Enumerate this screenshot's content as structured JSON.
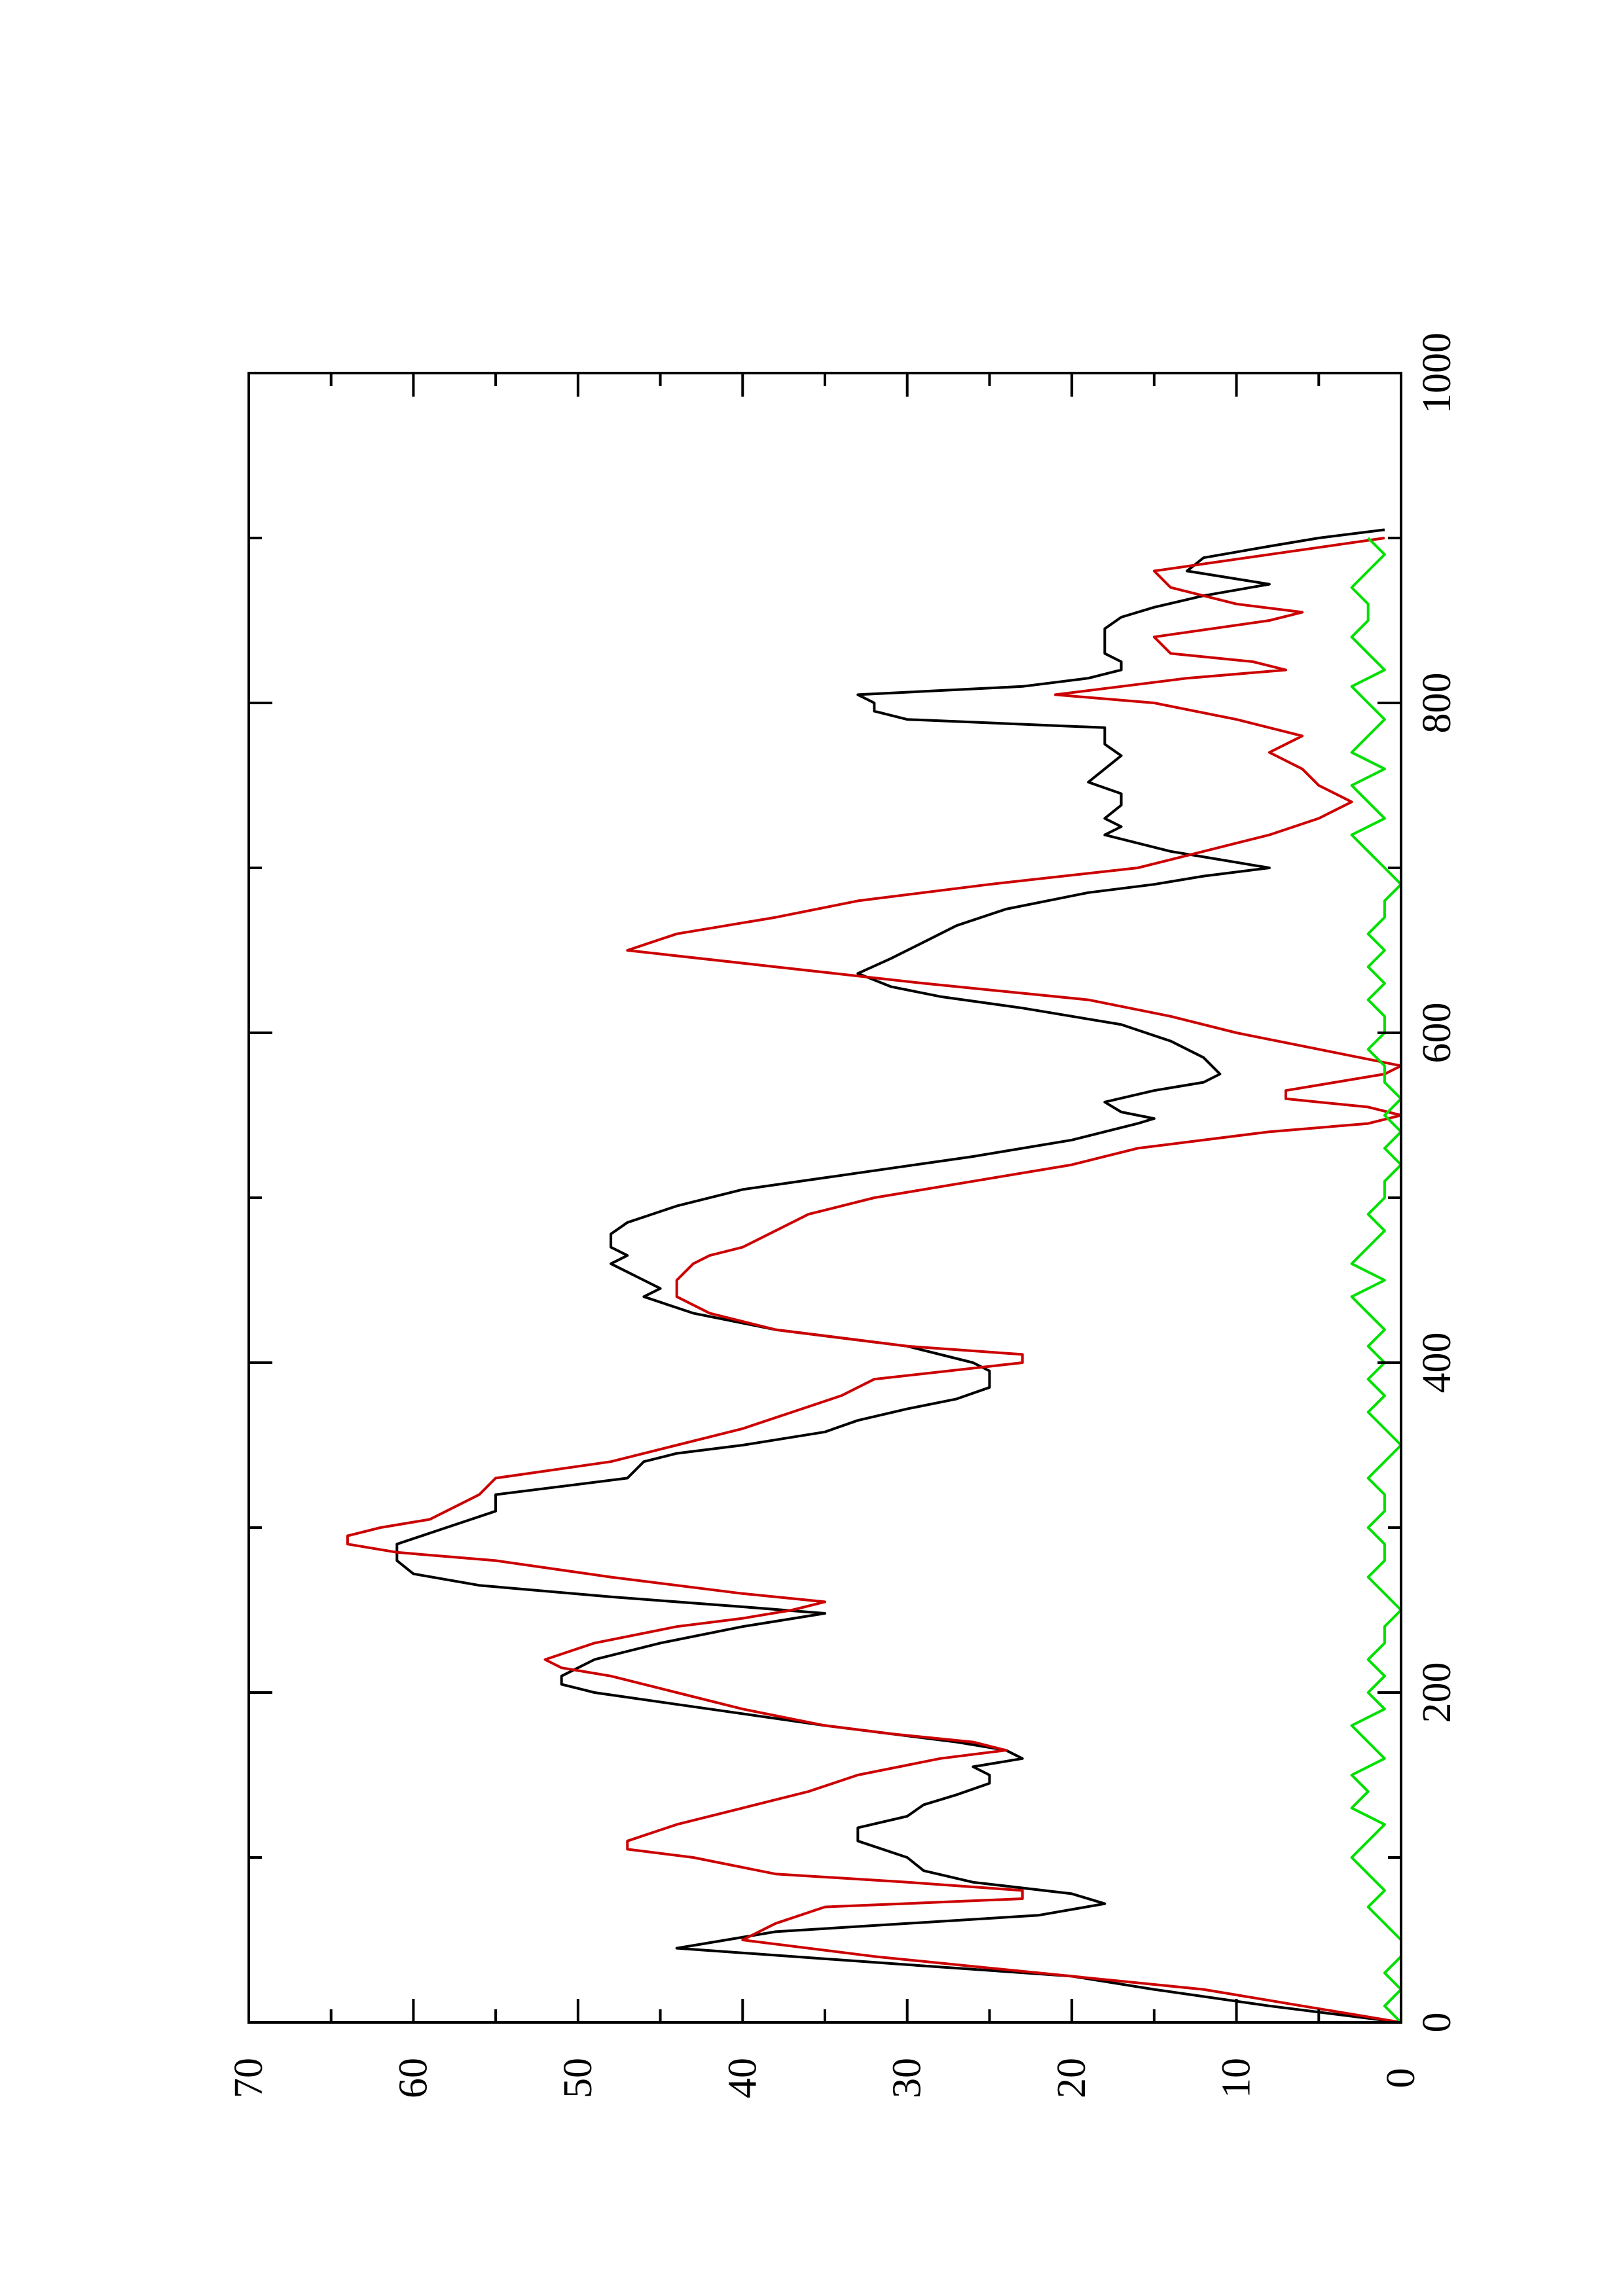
{
  "chart_data": {
    "type": "line",
    "orientation": "rotated-90-ccw",
    "title": "",
    "xlabel": "",
    "ylabel": "",
    "xlim": [
      0,
      1000
    ],
    "ylim": [
      0,
      70
    ],
    "x_ticks": [
      0,
      200,
      400,
      600,
      800,
      1000
    ],
    "x_tick_labels": [
      "0",
      "200",
      "400",
      "600",
      "800",
      "1000"
    ],
    "y_ticks": [
      0,
      10,
      20,
      30,
      40,
      50,
      60,
      70
    ],
    "y_tick_labels": [
      "0",
      "10",
      "20",
      "30",
      "40",
      "50",
      "60",
      "70"
    ],
    "grid": false,
    "legend": "none",
    "series": [
      {
        "color": "#000000",
        "x": [
          0,
          10,
          20,
          28,
          35,
          45,
          55,
          65,
          72,
          78,
          85,
          92,
          100,
          110,
          118,
          125,
          132,
          138,
          145,
          150,
          155,
          160,
          165,
          170,
          180,
          190,
          200,
          205,
          210,
          215,
          220,
          230,
          240,
          248,
          252,
          258,
          265,
          272,
          280,
          285,
          290,
          300,
          310,
          320,
          330,
          340,
          345,
          350,
          358,
          365,
          372,
          378,
          385,
          390,
          395,
          400,
          410,
          420,
          430,
          440,
          445,
          450,
          455,
          460,
          465,
          470,
          478,
          485,
          495,
          505,
          515,
          525,
          535,
          545,
          548,
          552,
          558,
          565,
          570,
          575,
          585,
          595,
          605,
          615,
          622,
          628,
          636,
          645,
          655,
          665,
          675,
          685,
          690,
          695,
          700,
          705,
          710,
          715,
          720,
          725,
          730,
          738,
          745,
          752,
          760,
          768,
          775,
          780,
          785,
          790,
          795,
          800,
          805,
          810,
          815,
          820,
          825,
          830,
          838,
          845,
          852,
          858,
          865,
          872,
          880,
          888,
          895,
          900,
          905
        ],
        "y": [
          0,
          8,
          15,
          20,
          30,
          44,
          38,
          22,
          18,
          20,
          26,
          29,
          30,
          33,
          33,
          30,
          29,
          27,
          25,
          25,
          26,
          23,
          24,
          27,
          35,
          42,
          49,
          51,
          51,
          50,
          49,
          45,
          40,
          35,
          40,
          48,
          56,
          60,
          61,
          61,
          61,
          58,
          55,
          55,
          47,
          46,
          44,
          40,
          35,
          33,
          30,
          27,
          25,
          25,
          25,
          26,
          30,
          38,
          43,
          46,
          45,
          46,
          47,
          48,
          47,
          48,
          48,
          47,
          44,
          40,
          33,
          26,
          20,
          16,
          15,
          17,
          18,
          15,
          12,
          11,
          12,
          14,
          17,
          23,
          28,
          31,
          33,
          31,
          29,
          27,
          24,
          19,
          15,
          12,
          8,
          11,
          14,
          16,
          18,
          17,
          18,
          17,
          17,
          19,
          18,
          17,
          18,
          18,
          18,
          30,
          32,
          32,
          33,
          23,
          19,
          17,
          17,
          18,
          18,
          18,
          17,
          15,
          12,
          8,
          13,
          12,
          8,
          5,
          1
        ]
      },
      {
        "color": "#cc0000",
        "x": [
          0,
          10,
          20,
          30,
          40,
          50,
          60,
          70,
          75,
          80,
          85,
          90,
          100,
          105,
          110,
          120,
          130,
          140,
          150,
          160,
          165,
          170,
          175,
          180,
          190,
          200,
          210,
          215,
          220,
          230,
          240,
          245,
          250,
          255,
          260,
          270,
          280,
          285,
          290,
          295,
          300,
          305,
          310,
          320,
          330,
          340,
          350,
          360,
          370,
          380,
          390,
          400,
          405,
          410,
          420,
          430,
          440,
          445,
          450,
          460,
          465,
          470,
          480,
          490,
          500,
          510,
          520,
          530,
          540,
          545,
          550,
          555,
          560,
          565,
          570,
          575,
          580,
          590,
          600,
          610,
          620,
          630,
          640,
          650,
          660,
          670,
          680,
          690,
          700,
          710,
          720,
          730,
          740,
          750,
          760,
          770,
          780,
          790,
          800,
          805,
          810,
          815,
          820,
          825,
          830,
          840,
          850,
          855,
          860,
          870,
          880,
          890,
          900
        ],
        "y": [
          0,
          6,
          12,
          22,
          32,
          40,
          38,
          35,
          23,
          23,
          30,
          38,
          43,
          47,
          47,
          44,
          40,
          36,
          33,
          28,
          24,
          26,
          31,
          35,
          40,
          44,
          48,
          51,
          52,
          49,
          44,
          40,
          37,
          35,
          40,
          48,
          55,
          61,
          64,
          64,
          62,
          59,
          58,
          56,
          55,
          48,
          44,
          40,
          37,
          34,
          32,
          23,
          23,
          30,
          38,
          42,
          44,
          44,
          44,
          43,
          42,
          40,
          38,
          36,
          32,
          26,
          20,
          16,
          8,
          2,
          0,
          2,
          7,
          7,
          4,
          1,
          0,
          5,
          10,
          14,
          19,
          29,
          38,
          47,
          44,
          38,
          33,
          25,
          16,
          12,
          8,
          5,
          3,
          5,
          6,
          8,
          6,
          10,
          15,
          21,
          17,
          13,
          7,
          9,
          14,
          15,
          8,
          6,
          10,
          14,
          15,
          8,
          1
        ]
      },
      {
        "color": "#00e000",
        "x": [
          0,
          10,
          20,
          30,
          40,
          50,
          60,
          70,
          80,
          90,
          100,
          110,
          120,
          130,
          140,
          150,
          160,
          170,
          180,
          190,
          200,
          210,
          220,
          230,
          240,
          250,
          260,
          270,
          280,
          290,
          300,
          310,
          320,
          330,
          340,
          350,
          360,
          370,
          380,
          390,
          400,
          410,
          420,
          430,
          440,
          450,
          460,
          470,
          480,
          490,
          500,
          510,
          520,
          530,
          540,
          550,
          560,
          570,
          580,
          590,
          600,
          610,
          620,
          630,
          640,
          650,
          660,
          670,
          680,
          690,
          700,
          710,
          720,
          730,
          740,
          750,
          760,
          770,
          780,
          790,
          800,
          810,
          820,
          830,
          840,
          850,
          860,
          870,
          880,
          890,
          900
        ],
        "y": [
          0,
          1,
          0,
          1,
          0,
          0,
          1,
          2,
          1,
          2,
          3,
          2,
          1,
          3,
          2,
          3,
          1,
          2,
          3,
          1,
          2,
          1,
          2,
          1,
          1,
          0,
          1,
          2,
          1,
          1,
          2,
          1,
          1,
          2,
          1,
          0,
          1,
          2,
          1,
          2,
          1,
          2,
          1,
          2,
          3,
          1,
          3,
          2,
          1,
          2,
          1,
          1,
          0,
          1,
          0,
          1,
          0,
          1,
          1,
          2,
          1,
          1,
          2,
          1,
          2,
          1,
          2,
          1,
          1,
          0,
          1,
          2,
          3,
          1,
          2,
          3,
          1,
          3,
          2,
          1,
          2,
          3,
          1,
          2,
          3,
          2,
          2,
          3,
          2,
          1,
          2
        ]
      }
    ]
  }
}
